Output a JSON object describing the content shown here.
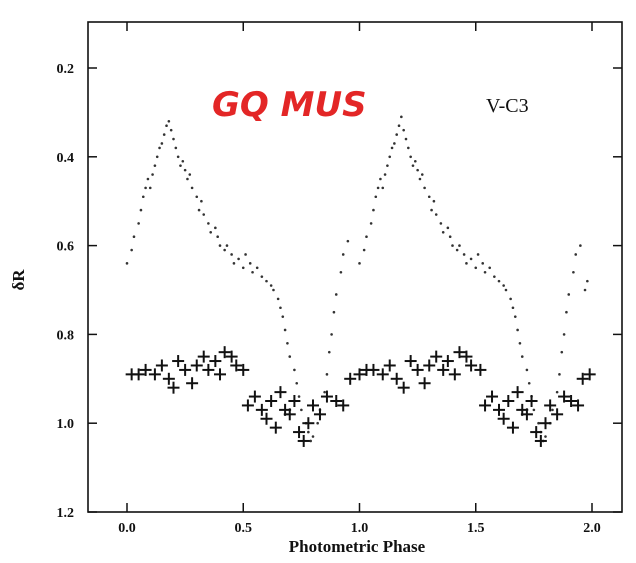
{
  "chart_data": {
    "type": "scatter",
    "xlabel": "Photometric Phase",
    "ylabel": "δR",
    "xlim": [
      -0.2,
      2.1
    ],
    "ylim": [
      0.12,
      1.2
    ],
    "y_inverted": true,
    "xticks": [
      "0.0",
      "0.5",
      "1.0",
      "1.5",
      "2.0"
    ],
    "xtick_values": [
      0.0,
      0.5,
      1.0,
      1.5,
      2.0
    ],
    "yticks": [
      "0.2",
      "0.4",
      "0.6",
      "0.8",
      "1.0",
      "1.2"
    ],
    "ytick_values": [
      0.2,
      0.4,
      0.6,
      0.8,
      1.0,
      1.2
    ],
    "annotations": [
      "GQ MUS",
      "V-C3"
    ],
    "colors": {
      "annotation_red": "#e32626",
      "points": "#222222"
    },
    "series": [
      {
        "marker": "dot",
        "points": [
          [
            0.0,
            0.64
          ],
          [
            0.02,
            0.61
          ],
          [
            0.03,
            0.58
          ],
          [
            0.05,
            0.55
          ],
          [
            0.06,
            0.52
          ],
          [
            0.07,
            0.49
          ],
          [
            0.08,
            0.47
          ],
          [
            0.09,
            0.45
          ],
          [
            0.1,
            0.47
          ],
          [
            0.11,
            0.44
          ],
          [
            0.12,
            0.42
          ],
          [
            0.13,
            0.4
          ],
          [
            0.14,
            0.38
          ],
          [
            0.15,
            0.37
          ],
          [
            0.16,
            0.35
          ],
          [
            0.17,
            0.33
          ],
          [
            0.18,
            0.32
          ],
          [
            0.19,
            0.34
          ],
          [
            0.2,
            0.36
          ],
          [
            0.21,
            0.38
          ],
          [
            0.22,
            0.4
          ],
          [
            0.23,
            0.42
          ],
          [
            0.24,
            0.41
          ],
          [
            0.25,
            0.43
          ],
          [
            0.26,
            0.45
          ],
          [
            0.27,
            0.44
          ],
          [
            0.28,
            0.47
          ],
          [
            0.3,
            0.49
          ],
          [
            0.31,
            0.52
          ],
          [
            0.32,
            0.5
          ],
          [
            0.33,
            0.53
          ],
          [
            0.35,
            0.55
          ],
          [
            0.36,
            0.57
          ],
          [
            0.38,
            0.56
          ],
          [
            0.39,
            0.58
          ],
          [
            0.4,
            0.6
          ],
          [
            0.42,
            0.61
          ],
          [
            0.43,
            0.6
          ],
          [
            0.45,
            0.62
          ],
          [
            0.46,
            0.64
          ],
          [
            0.48,
            0.63
          ],
          [
            0.5,
            0.65
          ],
          [
            0.51,
            0.62
          ],
          [
            0.53,
            0.64
          ],
          [
            0.54,
            0.66
          ],
          [
            0.56,
            0.65
          ],
          [
            0.58,
            0.67
          ],
          [
            0.6,
            0.68
          ],
          [
            0.62,
            0.69
          ],
          [
            0.63,
            0.7
          ],
          [
            0.65,
            0.72
          ],
          [
            0.66,
            0.74
          ],
          [
            0.67,
            0.76
          ],
          [
            0.68,
            0.79
          ],
          [
            0.69,
            0.82
          ],
          [
            0.7,
            0.85
          ],
          [
            0.72,
            0.88
          ],
          [
            0.73,
            0.91
          ],
          [
            0.74,
            0.94
          ],
          [
            0.75,
            0.97
          ],
          [
            0.77,
            1.0
          ],
          [
            0.78,
            1.02
          ],
          [
            0.79,
            1.04
          ],
          [
            0.8,
            1.03
          ],
          [
            0.82,
            1.0
          ],
          [
            0.83,
            0.97
          ],
          [
            0.85,
            0.93
          ],
          [
            0.86,
            0.89
          ],
          [
            0.87,
            0.84
          ],
          [
            0.88,
            0.8
          ],
          [
            0.89,
            0.75
          ],
          [
            0.9,
            0.71
          ],
          [
            0.92,
            0.66
          ],
          [
            0.93,
            0.62
          ],
          [
            0.95,
            0.59
          ],
          [
            1.0,
            0.64
          ],
          [
            1.02,
            0.61
          ],
          [
            1.03,
            0.58
          ],
          [
            1.05,
            0.55
          ],
          [
            1.06,
            0.52
          ],
          [
            1.07,
            0.49
          ],
          [
            1.08,
            0.47
          ],
          [
            1.09,
            0.45
          ],
          [
            1.1,
            0.47
          ],
          [
            1.11,
            0.44
          ],
          [
            1.12,
            0.42
          ],
          [
            1.13,
            0.4
          ],
          [
            1.14,
            0.38
          ],
          [
            1.15,
            0.37
          ],
          [
            1.16,
            0.35
          ],
          [
            1.17,
            0.33
          ],
          [
            1.18,
            0.31
          ],
          [
            1.19,
            0.34
          ],
          [
            1.2,
            0.36
          ],
          [
            1.21,
            0.38
          ],
          [
            1.22,
            0.4
          ],
          [
            1.23,
            0.42
          ],
          [
            1.24,
            0.41
          ],
          [
            1.25,
            0.43
          ],
          [
            1.26,
            0.45
          ],
          [
            1.27,
            0.44
          ],
          [
            1.28,
            0.47
          ],
          [
            1.3,
            0.49
          ],
          [
            1.31,
            0.52
          ],
          [
            1.32,
            0.5
          ],
          [
            1.33,
            0.53
          ],
          [
            1.35,
            0.55
          ],
          [
            1.36,
            0.57
          ],
          [
            1.38,
            0.56
          ],
          [
            1.39,
            0.58
          ],
          [
            1.4,
            0.6
          ],
          [
            1.42,
            0.61
          ],
          [
            1.43,
            0.6
          ],
          [
            1.45,
            0.62
          ],
          [
            1.46,
            0.64
          ],
          [
            1.48,
            0.63
          ],
          [
            1.5,
            0.65
          ],
          [
            1.51,
            0.62
          ],
          [
            1.53,
            0.64
          ],
          [
            1.54,
            0.66
          ],
          [
            1.56,
            0.65
          ],
          [
            1.58,
            0.67
          ],
          [
            1.6,
            0.68
          ],
          [
            1.62,
            0.69
          ],
          [
            1.63,
            0.7
          ],
          [
            1.65,
            0.72
          ],
          [
            1.66,
            0.74
          ],
          [
            1.67,
            0.76
          ],
          [
            1.68,
            0.79
          ],
          [
            1.69,
            0.82
          ],
          [
            1.7,
            0.85
          ],
          [
            1.72,
            0.88
          ],
          [
            1.73,
            0.91
          ],
          [
            1.74,
            0.94
          ],
          [
            1.75,
            0.97
          ],
          [
            1.77,
            1.0
          ],
          [
            1.78,
            1.02
          ],
          [
            1.79,
            1.04
          ],
          [
            1.8,
            1.03
          ],
          [
            1.82,
            1.0
          ],
          [
            1.83,
            0.97
          ],
          [
            1.85,
            0.93
          ],
          [
            1.86,
            0.89
          ],
          [
            1.87,
            0.84
          ],
          [
            1.88,
            0.8
          ],
          [
            1.89,
            0.75
          ],
          [
            1.9,
            0.71
          ],
          [
            1.92,
            0.66
          ],
          [
            1.93,
            0.62
          ],
          [
            1.95,
            0.6
          ],
          [
            1.97,
            0.7
          ],
          [
            1.98,
            0.68
          ]
        ]
      },
      {
        "marker": "cross",
        "points": [
          [
            0.02,
            0.89
          ],
          [
            0.05,
            0.89
          ],
          [
            0.08,
            0.88
          ],
          [
            0.12,
            0.89
          ],
          [
            0.15,
            0.87
          ],
          [
            0.18,
            0.9
          ],
          [
            0.2,
            0.92
          ],
          [
            0.22,
            0.86
          ],
          [
            0.25,
            0.88
          ],
          [
            0.28,
            0.91
          ],
          [
            0.3,
            0.87
          ],
          [
            0.33,
            0.85
          ],
          [
            0.35,
            0.88
          ],
          [
            0.38,
            0.86
          ],
          [
            0.4,
            0.89
          ],
          [
            0.42,
            0.84
          ],
          [
            0.45,
            0.85
          ],
          [
            0.47,
            0.87
          ],
          [
            0.5,
            0.88
          ],
          [
            0.52,
            0.96
          ],
          [
            0.55,
            0.94
          ],
          [
            0.58,
            0.97
          ],
          [
            0.6,
            0.99
          ],
          [
            0.62,
            0.95
          ],
          [
            0.64,
            1.01
          ],
          [
            0.66,
            0.93
          ],
          [
            0.68,
            0.97
          ],
          [
            0.7,
            0.98
          ],
          [
            0.72,
            0.95
          ],
          [
            0.74,
            1.02
          ],
          [
            0.76,
            1.04
          ],
          [
            0.78,
            1.0
          ],
          [
            0.8,
            0.96
          ],
          [
            0.83,
            0.98
          ],
          [
            0.86,
            0.94
          ],
          [
            0.9,
            0.95
          ],
          [
            0.93,
            0.96
          ],
          [
            0.96,
            0.9
          ],
          [
            1.0,
            0.89
          ],
          [
            1.03,
            0.88
          ],
          [
            1.06,
            0.88
          ],
          [
            1.1,
            0.89
          ],
          [
            1.13,
            0.87
          ],
          [
            1.16,
            0.9
          ],
          [
            1.19,
            0.92
          ],
          [
            1.22,
            0.86
          ],
          [
            1.25,
            0.88
          ],
          [
            1.28,
            0.91
          ],
          [
            1.3,
            0.87
          ],
          [
            1.33,
            0.85
          ],
          [
            1.36,
            0.88
          ],
          [
            1.38,
            0.86
          ],
          [
            1.41,
            0.89
          ],
          [
            1.43,
            0.84
          ],
          [
            1.46,
            0.85
          ],
          [
            1.48,
            0.87
          ],
          [
            1.52,
            0.88
          ],
          [
            1.54,
            0.96
          ],
          [
            1.57,
            0.94
          ],
          [
            1.6,
            0.97
          ],
          [
            1.62,
            0.99
          ],
          [
            1.64,
            0.95
          ],
          [
            1.66,
            1.01
          ],
          [
            1.68,
            0.93
          ],
          [
            1.7,
            0.97
          ],
          [
            1.72,
            0.98
          ],
          [
            1.74,
            0.95
          ],
          [
            1.76,
            1.02
          ],
          [
            1.78,
            1.04
          ],
          [
            1.8,
            1.0
          ],
          [
            1.82,
            0.96
          ],
          [
            1.85,
            0.98
          ],
          [
            1.88,
            0.94
          ],
          [
            1.91,
            0.95
          ],
          [
            1.94,
            0.96
          ],
          [
            1.96,
            0.9
          ],
          [
            1.99,
            0.89
          ]
        ]
      }
    ]
  }
}
